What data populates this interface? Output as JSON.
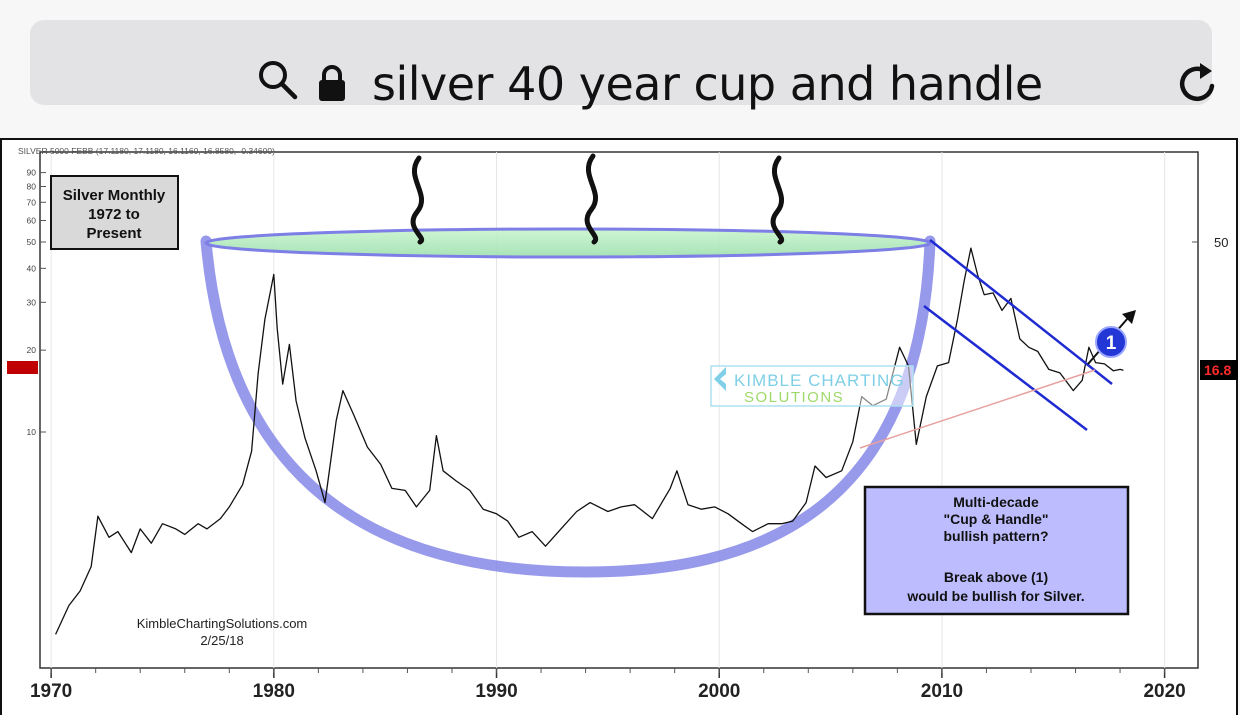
{
  "browser": {
    "url_text": "silver 40 year cup and handle"
  },
  "chart_data": {
    "type": "line",
    "header_text": "SILVER 5000 FEBB (17.1180, 17.1180, 16.1160, 16.8580, -0.34600)",
    "title_box": [
      "Silver Monthly",
      "1972 to",
      "Present"
    ],
    "watermark": [
      "KIMBLE CHARTING",
      "SOLUTIONS"
    ],
    "credit": [
      "KimbleChartingSolutions.com",
      "2/25/18"
    ],
    "annotation_box": [
      "Multi-decade",
      "\"Cup & Handle\"",
      "bullish pattern?",
      "",
      "Break above (1)",
      "would be bullish for Silver."
    ],
    "marker_label": "1",
    "price_tag": "16.8",
    "x_ticks": [
      1970,
      1980,
      1990,
      2000,
      2010,
      2020
    ],
    "left_y_ticks": [
      90,
      80,
      70,
      60,
      50,
      40,
      30,
      20,
      10
    ],
    "right_y_ticks": [
      50
    ],
    "xlim": [
      1969.5,
      2021.5
    ],
    "ylog": true,
    "series": [
      {
        "points": [
          [
            1970.2,
            1.8
          ],
          [
            1970.8,
            2.3
          ],
          [
            1971.3,
            2.6
          ],
          [
            1971.8,
            3.2
          ],
          [
            1972.1,
            4.9
          ],
          [
            1972.6,
            4.1
          ],
          [
            1973.0,
            4.3
          ],
          [
            1973.6,
            3.6
          ],
          [
            1974.0,
            4.4
          ],
          [
            1974.5,
            3.9
          ],
          [
            1975.0,
            4.6
          ],
          [
            1975.6,
            4.4
          ],
          [
            1976.0,
            4.2
          ],
          [
            1976.6,
            4.6
          ],
          [
            1977.0,
            4.4
          ],
          [
            1977.6,
            4.8
          ],
          [
            1978.0,
            5.3
          ],
          [
            1978.6,
            6.4
          ],
          [
            1979.0,
            8.5
          ],
          [
            1979.3,
            16.5
          ],
          [
            1979.6,
            26
          ],
          [
            1980.0,
            38
          ],
          [
            1980.15,
            24
          ],
          [
            1980.4,
            15
          ],
          [
            1980.7,
            21
          ],
          [
            1981.0,
            13
          ],
          [
            1981.4,
            9.5
          ],
          [
            1981.9,
            7.2
          ],
          [
            1982.3,
            5.5
          ],
          [
            1982.8,
            11
          ],
          [
            1983.1,
            14.2
          ],
          [
            1983.6,
            11.5
          ],
          [
            1984.2,
            8.8
          ],
          [
            1984.8,
            7.6
          ],
          [
            1985.3,
            6.2
          ],
          [
            1985.9,
            6.1
          ],
          [
            1986.4,
            5.3
          ],
          [
            1987.0,
            6.1
          ],
          [
            1987.3,
            9.7
          ],
          [
            1987.6,
            7.2
          ],
          [
            1988.2,
            6.6
          ],
          [
            1988.8,
            6.1
          ],
          [
            1989.4,
            5.2
          ],
          [
            1990.0,
            5.0
          ],
          [
            1990.5,
            4.7
          ],
          [
            1991.0,
            4.1
          ],
          [
            1991.6,
            4.3
          ],
          [
            1992.2,
            3.8
          ],
          [
            1993.0,
            4.5
          ],
          [
            1993.6,
            5.1
          ],
          [
            1994.2,
            5.5
          ],
          [
            1995.0,
            5.1
          ],
          [
            1995.6,
            5.3
          ],
          [
            1996.2,
            5.4
          ],
          [
            1997.0,
            4.8
          ],
          [
            1997.8,
            6.2
          ],
          [
            1998.1,
            7.2
          ],
          [
            1998.6,
            5.4
          ],
          [
            1999.2,
            5.2
          ],
          [
            1999.8,
            5.3
          ],
          [
            2000.4,
            5.0
          ],
          [
            2001.0,
            4.6
          ],
          [
            2001.5,
            4.3
          ],
          [
            2002.2,
            4.6
          ],
          [
            2002.8,
            4.6
          ],
          [
            2003.3,
            4.7
          ],
          [
            2003.9,
            5.5
          ],
          [
            2004.3,
            7.5
          ],
          [
            2004.8,
            6.8
          ],
          [
            2005.5,
            7.2
          ],
          [
            2006.0,
            9.2
          ],
          [
            2006.4,
            13.5
          ],
          [
            2006.9,
            12.5
          ],
          [
            2007.5,
            13.2
          ],
          [
            2008.1,
            20.5
          ],
          [
            2008.5,
            17.5
          ],
          [
            2008.85,
            9.0
          ],
          [
            2009.3,
            13.5
          ],
          [
            2009.8,
            17.5
          ],
          [
            2010.3,
            18
          ],
          [
            2010.7,
            26
          ],
          [
            2011.0,
            36
          ],
          [
            2011.3,
            47.5
          ],
          [
            2011.6,
            38
          ],
          [
            2011.9,
            32
          ],
          [
            2012.3,
            32.5
          ],
          [
            2012.7,
            28
          ],
          [
            2013.1,
            31
          ],
          [
            2013.5,
            22
          ],
          [
            2013.9,
            20.5
          ],
          [
            2014.3,
            19.8
          ],
          [
            2014.8,
            17
          ],
          [
            2015.3,
            16.5
          ],
          [
            2015.9,
            14.2
          ],
          [
            2016.3,
            15.5
          ],
          [
            2016.6,
            20.5
          ],
          [
            2016.9,
            18
          ],
          [
            2017.3,
            17.8
          ],
          [
            2017.7,
            16.8
          ],
          [
            2018.0,
            17.0
          ],
          [
            2018.15,
            16.86
          ]
        ]
      }
    ]
  }
}
